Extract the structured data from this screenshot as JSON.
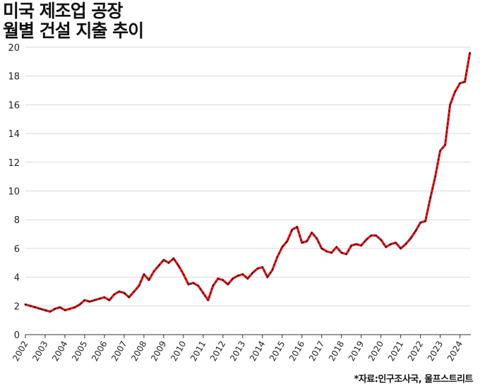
{
  "title": {
    "line1": "미국 제조업 공장",
    "line2": "월별 건설 지출 추이"
  },
  "source": "*자료:인구조사국, 울프스트리트",
  "colors": {
    "line": "#e8151b",
    "dash": "#1a1a1a",
    "grid": "#d9d9d9",
    "axis": "#333333"
  },
  "chart_data": {
    "type": "line",
    "title": "미국 제조업 공장 월별 건설 지출 추이",
    "xlabel": "",
    "ylabel": "",
    "ylim": [
      0,
      20
    ],
    "yticks": [
      0,
      2,
      4,
      6,
      8,
      10,
      12,
      14,
      16,
      18,
      20
    ],
    "xlim": [
      2002,
      2024.55
    ],
    "xticks": [
      "2002",
      "2003",
      "2004",
      "2005",
      "2006",
      "2007",
      "2008",
      "2009",
      "2010",
      "2011",
      "2012",
      "2013",
      "2014",
      "2015",
      "2016",
      "2017",
      "2018",
      "2019",
      "2020",
      "2021",
      "2022",
      "2023",
      "2024"
    ],
    "grid": true,
    "series": [
      {
        "name": "",
        "x": [
          2002.0,
          2002.25,
          2002.5,
          2002.75,
          2003.0,
          2003.25,
          2003.5,
          2003.75,
          2004.0,
          2004.25,
          2004.5,
          2004.75,
          2005.0,
          2005.25,
          2005.5,
          2005.75,
          2006.0,
          2006.25,
          2006.5,
          2006.75,
          2007.0,
          2007.25,
          2007.5,
          2007.75,
          2008.0,
          2008.25,
          2008.5,
          2008.75,
          2009.0,
          2009.25,
          2009.5,
          2009.75,
          2010.0,
          2010.25,
          2010.5,
          2010.75,
          2011.0,
          2011.25,
          2011.5,
          2011.75,
          2012.0,
          2012.25,
          2012.5,
          2012.75,
          2013.0,
          2013.25,
          2013.5,
          2013.75,
          2014.0,
          2014.25,
          2014.5,
          2014.75,
          2015.0,
          2015.25,
          2015.5,
          2015.75,
          2016.0,
          2016.25,
          2016.5,
          2016.75,
          2017.0,
          2017.25,
          2017.5,
          2017.75,
          2018.0,
          2018.25,
          2018.5,
          2018.75,
          2019.0,
          2019.25,
          2019.5,
          2019.75,
          2020.0,
          2020.25,
          2020.5,
          2020.75,
          2021.0,
          2021.25,
          2021.5,
          2021.75,
          2022.0,
          2022.25,
          2022.5,
          2022.75,
          2023.0,
          2023.25,
          2023.5,
          2023.75,
          2024.0,
          2024.25,
          2024.5
        ],
        "y": [
          2.1,
          2.0,
          1.9,
          1.8,
          1.7,
          1.6,
          1.8,
          1.9,
          1.7,
          1.8,
          1.9,
          2.1,
          2.4,
          2.3,
          2.4,
          2.5,
          2.6,
          2.4,
          2.8,
          3.0,
          2.9,
          2.6,
          3.0,
          3.4,
          4.2,
          3.8,
          4.4,
          4.8,
          5.2,
          5.0,
          5.3,
          4.8,
          4.2,
          3.5,
          3.6,
          3.4,
          2.9,
          2.4,
          3.4,
          3.9,
          3.8,
          3.5,
          3.9,
          4.1,
          4.2,
          3.9,
          4.3,
          4.6,
          4.7,
          4.0,
          4.5,
          5.4,
          6.1,
          6.5,
          7.3,
          7.5,
          6.4,
          6.5,
          7.1,
          6.7,
          6.0,
          5.8,
          5.7,
          6.1,
          5.7,
          5.6,
          6.2,
          6.3,
          6.2,
          6.6,
          6.9,
          6.9,
          6.6,
          6.1,
          6.3,
          6.4,
          6.0,
          6.3,
          6.7,
          7.2,
          7.8,
          7.9,
          9.5,
          11.0,
          12.8,
          13.2,
          16.0,
          16.9,
          17.5,
          17.6,
          19.6
        ]
      }
    ]
  }
}
